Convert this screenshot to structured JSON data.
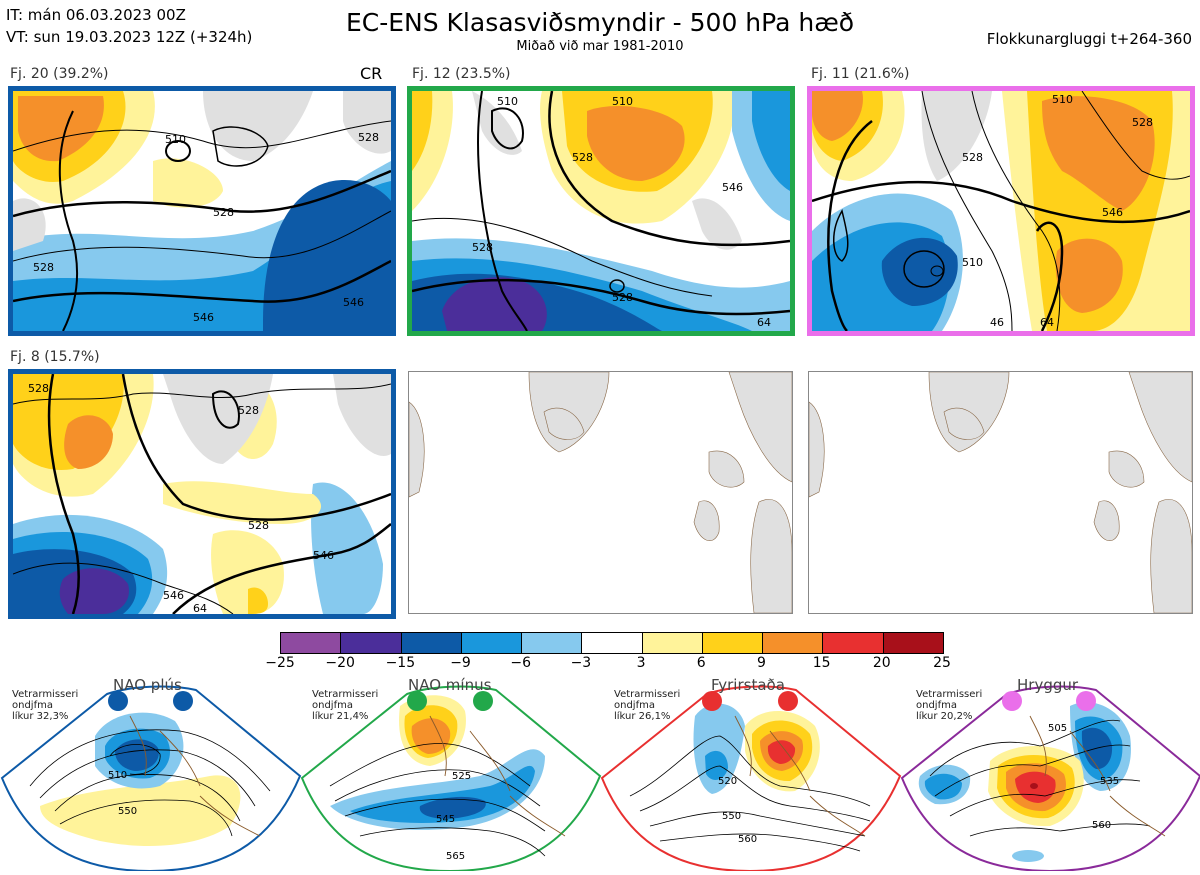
{
  "header": {
    "init_time": "IT: mán 06.03.2023 00Z",
    "valid_time": "VT: sun 19.03.2023 12Z  (+324h)",
    "title": "EC-ENS Klasasviðsmyndir - 500 hPa hæð",
    "subtitle": "Miðað við mar 1981-2010",
    "window": "Flokkunargluggi t+264-360"
  },
  "clusters": [
    {
      "label": "Fj. 20 (39.2%)",
      "tag": "CR",
      "border": "#0d5aa7",
      "contours": [
        "510",
        "528",
        "528",
        "546",
        "546",
        "528"
      ]
    },
    {
      "label": "Fj. 12 (23.5%)",
      "tag": "",
      "border": "#22a84a",
      "contours": [
        "510",
        "510",
        "528",
        "528",
        "528",
        "546",
        "64"
      ]
    },
    {
      "label": "Fj. 11 (21.6%)",
      "tag": "",
      "border": "#ea6fea",
      "contours": [
        "510",
        "528",
        "528",
        "546",
        "46",
        "64",
        "510"
      ]
    },
    {
      "label": "Fj. 8 (15.7%)",
      "tag": "",
      "border": "#0d5aa7",
      "contours": [
        "528",
        "528",
        "528",
        "546",
        "546",
        "64"
      ]
    }
  ],
  "colorbar": {
    "colors": [
      "#8e4aa0",
      "#4b2e9a",
      "#0d5aa7",
      "#1a97dc",
      "#86c9ee",
      "#ffffff",
      "#fff39a",
      "#ffd11a",
      "#f5902a",
      "#e83030",
      "#a8101a"
    ],
    "ticks": [
      "−25",
      "−20",
      "−15",
      "−9",
      "−6",
      "−3",
      "3",
      "6",
      "9",
      "15",
      "20",
      "25"
    ]
  },
  "regimes": [
    {
      "name": "NAO plús",
      "info1": "Vetrarmisseri",
      "info2": "ondjfma",
      "info3": "líkur 32,3%",
      "color": "#0d5aa7",
      "contours": [
        "510",
        "550"
      ]
    },
    {
      "name": "NAO mínus",
      "info1": "Vetrarmisseri",
      "info2": "ondjfma",
      "info3": "líkur 21,4%",
      "color": "#22a84a",
      "contours": [
        "525",
        "545",
        "565"
      ]
    },
    {
      "name": "Fyrirstaða",
      "info1": "Vetrarmisseri",
      "info2": "ondjfma",
      "info3": "líkur 26,1%",
      "color": "#e83030",
      "contours": [
        "520",
        "550",
        "560"
      ]
    },
    {
      "name": "Hryggur",
      "info1": "Vetrarmisseri",
      "info2": "ondjfma",
      "info3": "líkur 20,2%",
      "color": "#ea6fea",
      "contours": [
        "505",
        "535",
        "560"
      ]
    }
  ]
}
